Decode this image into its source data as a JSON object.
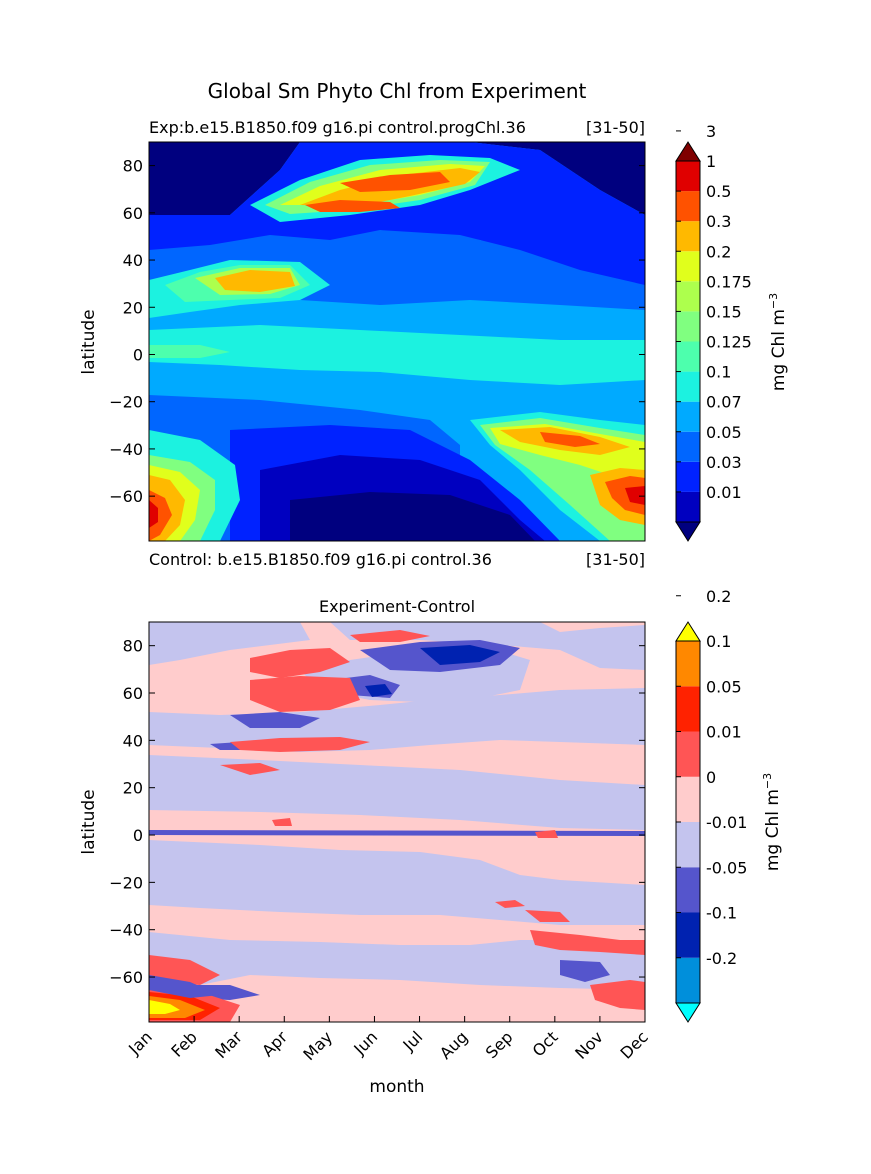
{
  "figure_title": "Global Sm Phyto Chl from Experiment",
  "chart_data": [
    {
      "type": "heatmap",
      "title_left": "Exp:b.e15.B1850.f09 g16.pi control.progChl.36",
      "title_right": "[31-50]",
      "subtitle_left": "Control: b.e15.B1850.f09 g16.pi control.36",
      "subtitle_right": "[31-50]",
      "xlabel": "",
      "ylabel": "latitude",
      "ylim": [
        -79,
        90
      ],
      "yticks": [
        "80",
        "60",
        "40",
        "20",
        "0",
        "−20",
        "−40",
        "−60"
      ],
      "colorbar_label": "mg Chl m",
      "colorbar_exponent": "−3",
      "levels": [
        "0.01",
        "0.03",
        "0.05",
        "0.07",
        "0.1",
        "0.125",
        "0.15",
        "0.175",
        "0.2",
        "0.3",
        "0.5",
        "1",
        "3"
      ],
      "colors": [
        "#00007f",
        "#0000c0",
        "#0022ff",
        "#0066ff",
        "#00aaff",
        "#1cf2e0",
        "#4dffad",
        "#80ff80",
        "#adff4d",
        "#e0ff1c",
        "#ffb900",
        "#ff5200",
        "#e00000",
        "#7f0000"
      ]
    },
    {
      "type": "heatmap",
      "title": "Experiment-Control",
      "xlabel": "month",
      "ylabel": "latitude",
      "ylim": [
        -79,
        90
      ],
      "months": [
        "Jan",
        "Feb",
        "Mar",
        "Apr",
        "May",
        "Jun",
        "Jul",
        "Aug",
        "Sep",
        "Oct",
        "Nov",
        "Dec"
      ],
      "yticks": [
        "80",
        "60",
        "40",
        "20",
        "0",
        "−20",
        "−40",
        "−60"
      ],
      "colorbar_label": "mg Chl m",
      "colorbar_exponent": "−3",
      "levels": [
        "-0.2",
        "-0.1",
        "-0.05",
        "-0.01",
        "0",
        "0.01",
        "0.05",
        "0.1",
        "0.2"
      ],
      "colors": [
        "#00ffff",
        "#008fdb",
        "#0022b0",
        "#5555cc",
        "#c4c4ee",
        "#ffcccc",
        "#ff5555",
        "#ff2200",
        "#ff8800",
        "#ffff00"
      ]
    }
  ]
}
